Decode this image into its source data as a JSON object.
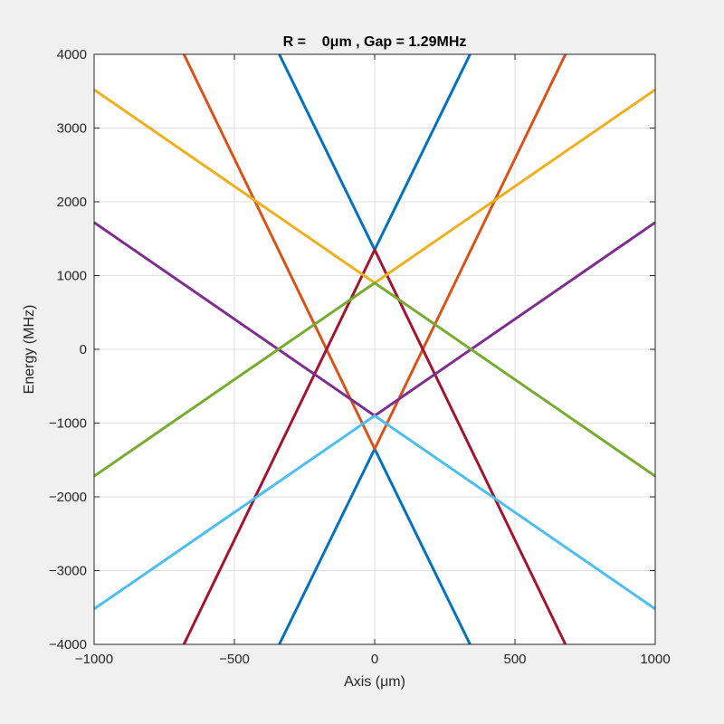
{
  "chart_data": {
    "type": "line",
    "title": "R =    0μm , Gap = 1.29MHz",
    "xlabel": "Axis (μm)",
    "ylabel": "Energy (MHz)",
    "xlim": [
      -1000,
      1000
    ],
    "ylim": [
      -4000,
      4000
    ],
    "xticks": [
      -1000,
      -500,
      0,
      500,
      1000
    ],
    "xtick_labels": [
      "−1000",
      "−500",
      "0",
      "500",
      "1000"
    ],
    "yticks": [
      -4000,
      -3000,
      -2000,
      -1000,
      0,
      1000,
      2000,
      3000,
      4000
    ],
    "ytick_labels": [
      "−4000",
      "−3000",
      "−2000",
      "−1000",
      "0",
      "1000",
      "2000",
      "3000",
      "4000"
    ],
    "grid": true,
    "series": [
      {
        "color": "#0072BD",
        "x": [
          -340,
          0,
          340
        ],
        "y": [
          4000,
          1350,
          4000
        ]
      },
      {
        "color": "#0072BD",
        "x": [
          -340,
          0,
          340
        ],
        "y": [
          -4000,
          -1350,
          -4000
        ]
      },
      {
        "color": "#D95319",
        "x": [
          -680,
          0,
          680
        ],
        "y": [
          4000,
          -1350,
          4000
        ]
      },
      {
        "color": "#A2142F",
        "x": [
          -680,
          0,
          680
        ],
        "y": [
          -4000,
          1350,
          -4000
        ]
      },
      {
        "color": "#EDB120",
        "x": [
          -1000,
          0,
          1000
        ],
        "y": [
          3520,
          900,
          3520
        ]
      },
      {
        "color": "#7E2F8E",
        "x": [
          -1000,
          0,
          1000
        ],
        "y": [
          1720,
          -900,
          1720
        ]
      },
      {
        "color": "#77AC30",
        "x": [
          -1000,
          0,
          1000
        ],
        "y": [
          -1720,
          900,
          -1720
        ]
      },
      {
        "color": "#4DBEEE",
        "x": [
          -1000,
          0,
          1000
        ],
        "y": [
          -3520,
          -900,
          -3520
        ]
      }
    ]
  }
}
